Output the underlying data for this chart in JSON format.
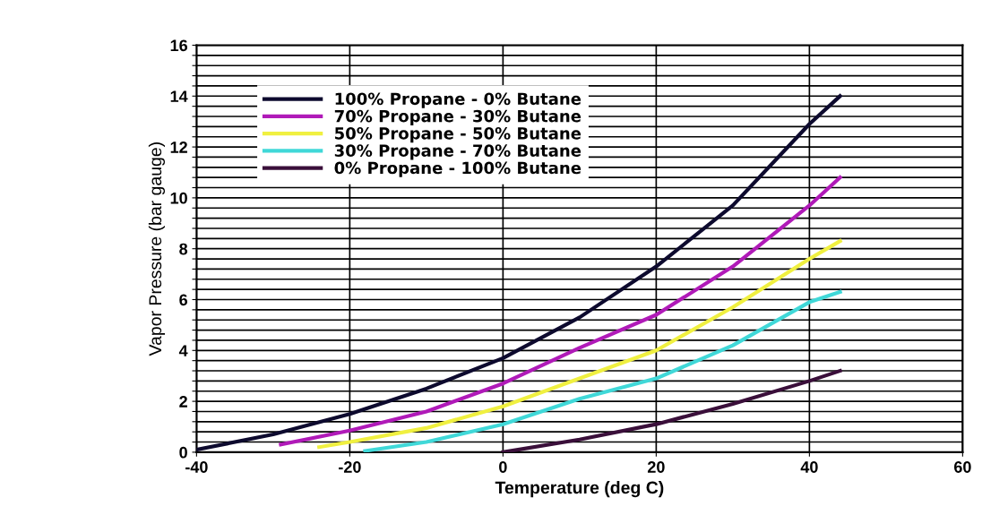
{
  "chart_data": {
    "type": "line",
    "xlabel": "Temperature (deg C)",
    "ylabel": "Vapor Pressure (bar gauge)",
    "xlim": [
      -40,
      60
    ],
    "xticks": [
      -40,
      -20,
      0,
      20,
      40,
      60
    ],
    "ylim": [
      0,
      16
    ],
    "yticks": [
      0,
      {
        "value": 0.4,
        "label": null
      },
      {
        "value": 0.8,
        "label": null
      },
      {
        "value": 1.2,
        "label": null
      },
      {
        "value": 1.6,
        "label": null
      },
      2,
      {
        "value": 2.4,
        "label": null
      },
      {
        "value": 2.8,
        "label": null
      },
      {
        "value": 3.2,
        "label": null
      },
      {
        "value": 3.6,
        "label": null
      },
      4,
      {
        "value": 4.4,
        "label": null
      },
      {
        "value": 4.8,
        "label": null
      },
      {
        "value": 5.2,
        "label": null
      },
      {
        "value": 5.6,
        "label": null
      },
      6,
      {
        "value": 6.4,
        "label": null
      },
      {
        "value": 6.8,
        "label": null
      },
      {
        "value": 7.2,
        "label": null
      },
      {
        "value": 7.6,
        "label": null
      },
      8,
      {
        "value": 8.4,
        "label": null
      },
      {
        "value": 8.8,
        "label": null
      },
      {
        "value": 9.2,
        "label": null
      },
      {
        "value": 9.6,
        "label": null
      },
      10,
      {
        "value": 10.4,
        "label": null
      },
      {
        "value": 10.8,
        "label": null
      },
      {
        "value": 11.2,
        "label": null
      },
      {
        "value": 11.6,
        "label": null
      },
      12,
      {
        "value": 12.4,
        "label": null
      },
      {
        "value": 12.8,
        "label": null
      },
      {
        "value": 13.2,
        "label": null
      },
      {
        "value": 13.6,
        "label": null
      },
      14,
      {
        "value": 14.4,
        "label": null
      },
      {
        "value": 14.8,
        "label": null
      },
      {
        "value": 15.2,
        "label": null
      },
      {
        "value": 15.6,
        "label": null
      },
      16
    ],
    "grid": true,
    "legend": "top left",
    "marker": "none",
    "line_style": "solid",
    "series": [
      {
        "name": "100% Propane - 0% Butane",
        "color": "#0d0a2e",
        "x": [
          -40,
          -30,
          -20,
          -10,
          0,
          10,
          20,
          30,
          40,
          44
        ],
        "values": [
          0.1,
          0.7,
          1.5,
          2.5,
          3.7,
          5.3,
          7.3,
          9.7,
          12.9,
          14
        ]
      },
      {
        "name": "70% Propane - 30% Butane",
        "color": "#b01ab8",
        "x": [
          -29,
          -20,
          -10,
          0,
          10,
          20,
          30,
          40,
          44
        ],
        "values": [
          0.3,
          0.85,
          1.6,
          2.7,
          4.1,
          5.4,
          7.3,
          9.7,
          10.8
        ]
      },
      {
        "name": "50% Propane - 50% Butane",
        "color": "#f0f040",
        "x": [
          -24,
          -20,
          -10,
          0,
          10,
          20,
          30,
          40,
          44
        ],
        "values": [
          0.2,
          0.4,
          0.95,
          1.8,
          2.9,
          4.0,
          5.7,
          7.6,
          8.3
        ]
      },
      {
        "name": "30% Propane - 70% Butane",
        "color": "#40d8d8",
        "x": [
          -18,
          -10,
          0,
          10,
          20,
          30,
          40,
          44
        ],
        "values": [
          0.05,
          0.4,
          1.1,
          2.1,
          2.9,
          4.2,
          5.9,
          6.3
        ]
      },
      {
        "name": "0% Propane - 100% Butane",
        "color": "#3a0f3a",
        "x": [
          0,
          10,
          20,
          30,
          40,
          44
        ],
        "values": [
          0,
          0.5,
          1.1,
          1.9,
          2.8,
          3.2
        ]
      }
    ]
  }
}
